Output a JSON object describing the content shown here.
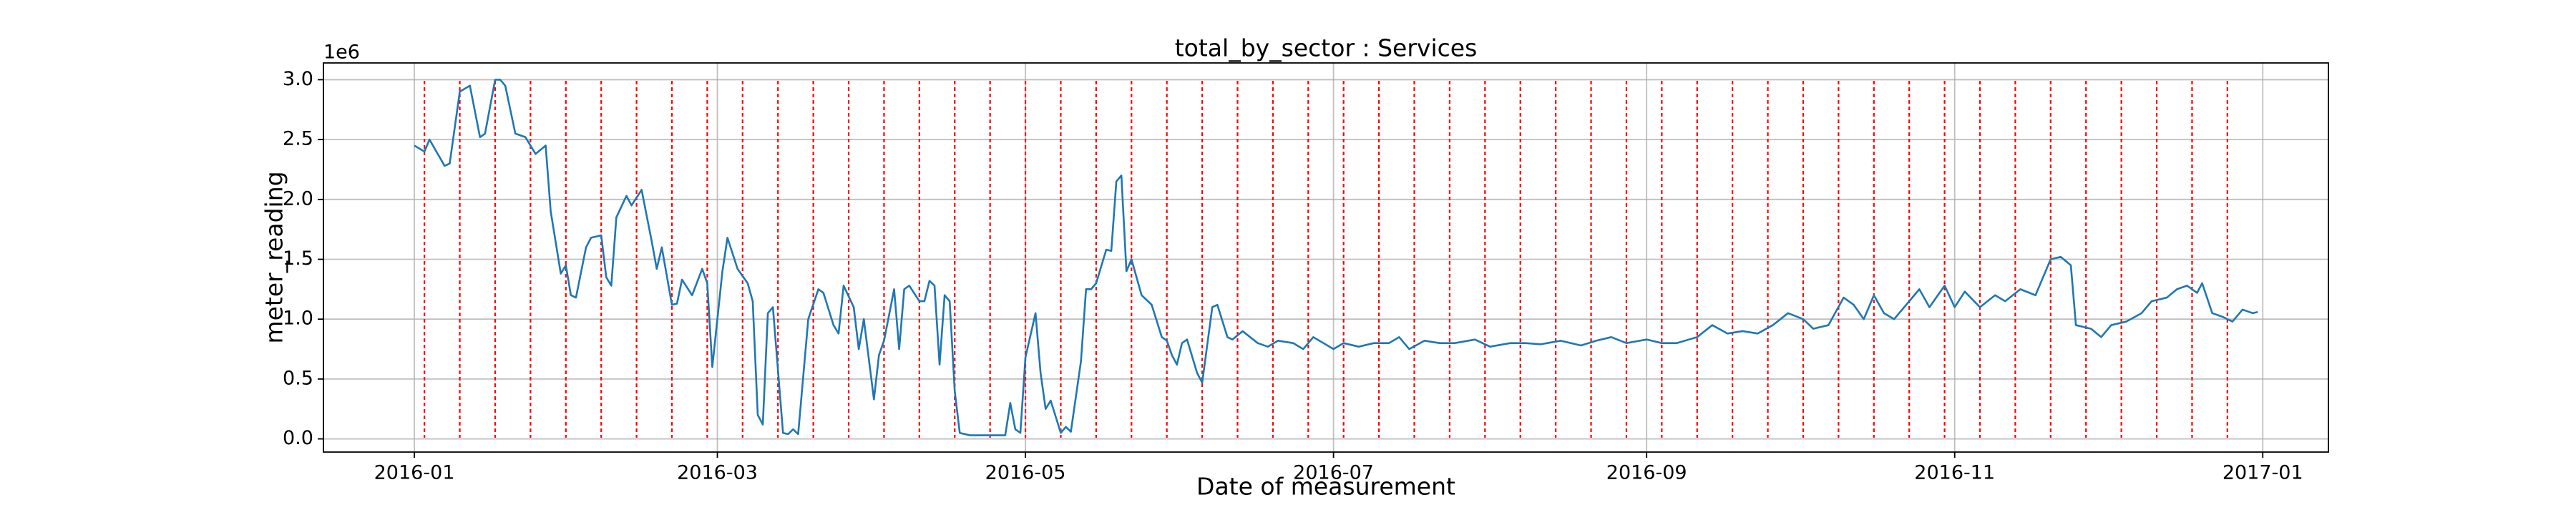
{
  "chart_data": {
    "type": "line",
    "title": "total_by_sector : Services",
    "x_label": "Date of measurement",
    "y_label": "meter_reading",
    "y_offset": "1e6",
    "color": "#1f77b4",
    "grid": true,
    "x": [
      "2016-01-01",
      "2016-01-03",
      "2016-01-04",
      "2016-01-07",
      "2016-01-08",
      "2016-01-10",
      "2016-01-12",
      "2016-01-14",
      "2016-01-15",
      "2016-01-17",
      "2016-01-18",
      "2016-01-19",
      "2016-01-21",
      "2016-01-23",
      "2016-01-25",
      "2016-01-27",
      "2016-01-28",
      "2016-01-30",
      "2016-01-31",
      "2016-02-01",
      "2016-02-02",
      "2016-02-04",
      "2016-02-05",
      "2016-02-07",
      "2016-02-08",
      "2016-02-09",
      "2016-02-10",
      "2016-02-12",
      "2016-02-13",
      "2016-02-15",
      "2016-02-17",
      "2016-02-18",
      "2016-02-19",
      "2016-02-21",
      "2016-02-22",
      "2016-02-23",
      "2016-02-25",
      "2016-02-27",
      "2016-02-28",
      "2016-02-29",
      "2016-03-02",
      "2016-03-03",
      "2016-03-05",
      "2016-03-07",
      "2016-03-08",
      "2016-03-09",
      "2016-03-10",
      "2016-03-11",
      "2016-03-12",
      "2016-03-14",
      "2016-03-15",
      "2016-03-16",
      "2016-03-17",
      "2016-03-19",
      "2016-03-21",
      "2016-03-22",
      "2016-03-24",
      "2016-03-25",
      "2016-03-26",
      "2016-03-28",
      "2016-03-29",
      "2016-03-30",
      "2016-04-01",
      "2016-04-02",
      "2016-04-03",
      "2016-04-05",
      "2016-04-06",
      "2016-04-07",
      "2016-04-08",
      "2016-04-10",
      "2016-04-11",
      "2016-04-12",
      "2016-04-13",
      "2016-04-14",
      "2016-04-15",
      "2016-04-16",
      "2016-04-17",
      "2016-04-18",
      "2016-04-20",
      "2016-04-27",
      "2016-04-28",
      "2016-04-29",
      "2016-04-30",
      "2016-05-01",
      "2016-05-03",
      "2016-05-04",
      "2016-05-05",
      "2016-05-06",
      "2016-05-08",
      "2016-05-09",
      "2016-05-10",
      "2016-05-12",
      "2016-05-13",
      "2016-05-14",
      "2016-05-15",
      "2016-05-17",
      "2016-05-18",
      "2016-05-19",
      "2016-05-20",
      "2016-05-21",
      "2016-05-22",
      "2016-05-24",
      "2016-05-26",
      "2016-05-28",
      "2016-05-29",
      "2016-05-30",
      "2016-05-31",
      "2016-06-01",
      "2016-06-02",
      "2016-06-04",
      "2016-06-05",
      "2016-06-07",
      "2016-06-08",
      "2016-06-10",
      "2016-06-11",
      "2016-06-13",
      "2016-06-16",
      "2016-06-18",
      "2016-06-20",
      "2016-06-23",
      "2016-06-25",
      "2016-06-27",
      "2016-07-01",
      "2016-07-03",
      "2016-07-06",
      "2016-07-09",
      "2016-07-12",
      "2016-07-14",
      "2016-07-16",
      "2016-07-19",
      "2016-07-22",
      "2016-07-25",
      "2016-07-29",
      "2016-08-01",
      "2016-08-05",
      "2016-08-08",
      "2016-08-11",
      "2016-08-15",
      "2016-08-19",
      "2016-08-22",
      "2016-08-25",
      "2016-08-28",
      "2016-09-01",
      "2016-09-04",
      "2016-09-07",
      "2016-09-11",
      "2016-09-14",
      "2016-09-17",
      "2016-09-20",
      "2016-09-23",
      "2016-09-26",
      "2016-09-29",
      "2016-10-02",
      "2016-10-04",
      "2016-10-07",
      "2016-10-10",
      "2016-10-12",
      "2016-10-14",
      "2016-10-16",
      "2016-10-18",
      "2016-10-20",
      "2016-10-23",
      "2016-10-25",
      "2016-10-27",
      "2016-10-30",
      "2016-11-01",
      "2016-11-03",
      "2016-11-06",
      "2016-11-09",
      "2016-11-11",
      "2016-11-14",
      "2016-11-17",
      "2016-11-20",
      "2016-11-22",
      "2016-11-24",
      "2016-11-25",
      "2016-11-28",
      "2016-11-30",
      "2016-12-02",
      "2016-12-05",
      "2016-12-08",
      "2016-12-10",
      "2016-12-13",
      "2016-12-15",
      "2016-12-17",
      "2016-12-19",
      "2016-12-20",
      "2016-12-22",
      "2016-12-24",
      "2016-12-26",
      "2016-12-28",
      "2016-12-30",
      "2016-12-31"
    ],
    "values": [
      2.45,
      2.4,
      2.5,
      2.28,
      2.3,
      2.9,
      2.95,
      2.52,
      2.55,
      3.0,
      3.0,
      2.95,
      2.55,
      2.52,
      2.38,
      2.45,
      1.9,
      1.38,
      1.45,
      1.2,
      1.18,
      1.6,
      1.68,
      1.7,
      1.35,
      1.28,
      1.85,
      2.03,
      1.95,
      2.08,
      1.65,
      1.42,
      1.6,
      1.12,
      1.13,
      1.33,
      1.2,
      1.42,
      1.3,
      0.6,
      1.4,
      1.68,
      1.42,
      1.3,
      1.15,
      0.2,
      0.12,
      1.05,
      1.1,
      0.05,
      0.04,
      0.08,
      0.04,
      1.0,
      1.25,
      1.22,
      0.95,
      0.88,
      1.28,
      1.1,
      0.75,
      1.0,
      0.33,
      0.7,
      0.82,
      1.25,
      0.75,
      1.25,
      1.28,
      1.15,
      1.15,
      1.32,
      1.28,
      0.62,
      1.2,
      1.15,
      0.4,
      0.05,
      0.03,
      0.03,
      0.3,
      0.08,
      0.05,
      0.68,
      1.05,
      0.55,
      0.25,
      0.32,
      0.05,
      0.1,
      0.06,
      0.65,
      1.25,
      1.25,
      1.3,
      1.58,
      1.57,
      2.15,
      2.2,
      1.4,
      1.5,
      1.2,
      1.12,
      0.85,
      0.82,
      0.7,
      0.62,
      0.8,
      0.83,
      0.55,
      0.47,
      1.1,
      1.12,
      0.85,
      0.83,
      0.9,
      0.8,
      0.77,
      0.82,
      0.8,
      0.75,
      0.85,
      0.75,
      0.8,
      0.77,
      0.8,
      0.8,
      0.85,
      0.75,
      0.82,
      0.8,
      0.8,
      0.83,
      0.77,
      0.8,
      0.8,
      0.79,
      0.82,
      0.78,
      0.82,
      0.85,
      0.8,
      0.83,
      0.8,
      0.8,
      0.85,
      0.95,
      0.88,
      0.9,
      0.88,
      0.95,
      1.05,
      1.0,
      0.92,
      0.95,
      1.18,
      1.12,
      1.0,
      1.2,
      1.05,
      1.0,
      1.15,
      1.25,
      1.1,
      1.28,
      1.1,
      1.23,
      1.1,
      1.2,
      1.15,
      1.25,
      1.2,
      1.5,
      1.52,
      1.45,
      0.95,
      0.92,
      0.85,
      0.95,
      0.98,
      1.05,
      1.15,
      1.18,
      1.25,
      1.28,
      1.22,
      1.3,
      1.05,
      1.02,
      0.98,
      1.08,
      1.05,
      1.06
    ],
    "vlines": {
      "color": "red",
      "x": [
        "2016-01-03",
        "2016-01-10",
        "2016-01-17",
        "2016-01-24",
        "2016-01-31",
        "2016-02-07",
        "2016-02-14",
        "2016-02-21",
        "2016-02-28",
        "2016-03-06",
        "2016-03-13",
        "2016-03-20",
        "2016-03-27",
        "2016-04-03",
        "2016-04-10",
        "2016-04-17",
        "2016-04-24",
        "2016-05-01",
        "2016-05-08",
        "2016-05-15",
        "2016-05-22",
        "2016-05-29",
        "2016-06-05",
        "2016-06-12",
        "2016-06-19",
        "2016-06-26",
        "2016-07-03",
        "2016-07-10",
        "2016-07-17",
        "2016-07-24",
        "2016-07-31",
        "2016-08-07",
        "2016-08-14",
        "2016-08-21",
        "2016-08-28",
        "2016-09-04",
        "2016-09-11",
        "2016-09-18",
        "2016-09-25",
        "2016-10-02",
        "2016-10-09",
        "2016-10-16",
        "2016-10-23",
        "2016-10-30",
        "2016-11-06",
        "2016-11-13",
        "2016-11-20",
        "2016-11-27",
        "2016-12-04",
        "2016-12-11",
        "2016-12-18",
        "2016-12-25"
      ]
    },
    "xlim": [
      "2015-12-14",
      "2017-01-14"
    ],
    "xticks": [
      {
        "value": "2016-01-01",
        "label": "2016-01"
      },
      {
        "value": "2016-03-01",
        "label": "2016-03"
      },
      {
        "value": "2016-05-01",
        "label": "2016-05"
      },
      {
        "value": "2016-07-01",
        "label": "2016-07"
      },
      {
        "value": "2016-09-01",
        "label": "2016-09"
      },
      {
        "value": "2016-11-01",
        "label": "2016-11"
      },
      {
        "value": "2017-01-01",
        "label": "2017-01"
      }
    ],
    "ylim": [
      -0.11,
      3.14
    ],
    "yticks": [
      {
        "value": 0,
        "label": "0.0"
      },
      {
        "value": 0.5,
        "label": "0.5"
      },
      {
        "value": 1,
        "label": "1.0"
      },
      {
        "value": 1.5,
        "label": "1.5"
      },
      {
        "value": 2,
        "label": "2.0"
      },
      {
        "value": 2.5,
        "label": "2.5"
      },
      {
        "value": 3,
        "label": "3.0"
      }
    ]
  }
}
